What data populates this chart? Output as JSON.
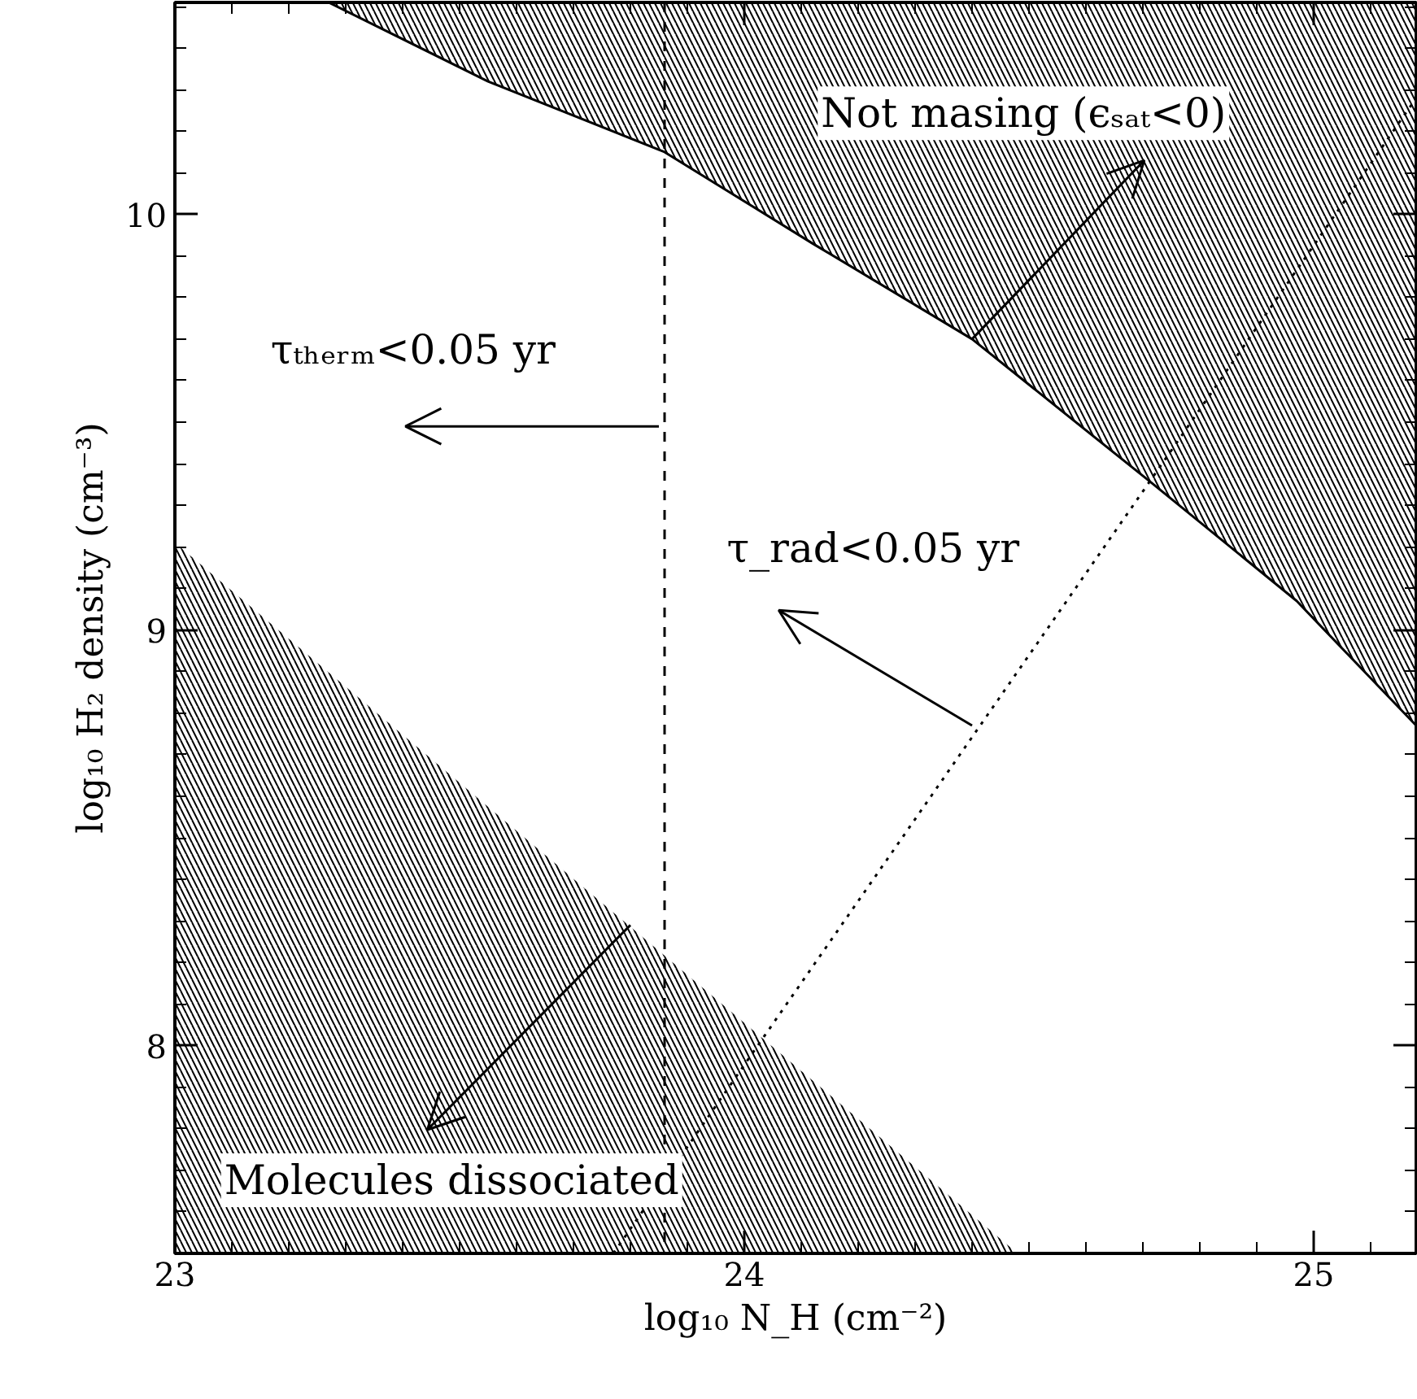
{
  "chart_data": {
    "type": "line",
    "xlabel": "log₁₀ N_H (cm⁻²)",
    "ylabel": "log₁₀ H₂ density (cm⁻³)",
    "xlim": [
      23,
      25.18
    ],
    "ylim": [
      7.5,
      10.51
    ],
    "xticks": [
      23,
      24,
      25
    ],
    "yticks": [
      8,
      9,
      10
    ],
    "grid": false,
    "series": [
      {
        "color": "#000000",
        "x": [
          23.27,
          23.55,
          23.86,
          24.12,
          24.4,
          24.71,
          24.97,
          25.18
        ],
        "values": [
          10.51,
          10.32,
          10.15,
          9.93,
          9.7,
          9.36,
          9.07,
          8.77
        ],
        "lower": [
          10.51,
          10.32,
          10.15,
          9.93,
          9.7,
          9.36,
          9.07,
          8.77
        ],
        "upper": [
          10.51,
          10.51,
          10.51,
          10.51,
          10.51,
          10.51,
          10.51,
          10.51
        ]
      },
      {
        "type": "area",
        "color": "#000000",
        "x": [
          23,
          24.48
        ],
        "values": [
          9.21,
          7.5
        ]
      },
      {
        "color": "#000000",
        "line_style": "dotted",
        "x": [
          23.77,
          25.18
        ],
        "values": [
          7.5,
          10.28
        ]
      }
    ],
    "ref_lines": [
      {
        "axis": "x",
        "value": 23.86,
        "line_style": "dashed"
      }
    ],
    "annotations": [
      {
        "text": "τₜₕₑᵣₘ<0.05 yr",
        "x": 23.85,
        "y": 9.49
      },
      {
        "text": "Not masing (ϵₛₐₜ<0)",
        "x": 24.4,
        "y": 9.7
      },
      {
        "text": "τ_rad<0.05 yr",
        "x": 24.4,
        "y": 8.77
      },
      {
        "text": "Molecules dissociated",
        "x": 23.8,
        "y": 8.29
      }
    ]
  }
}
